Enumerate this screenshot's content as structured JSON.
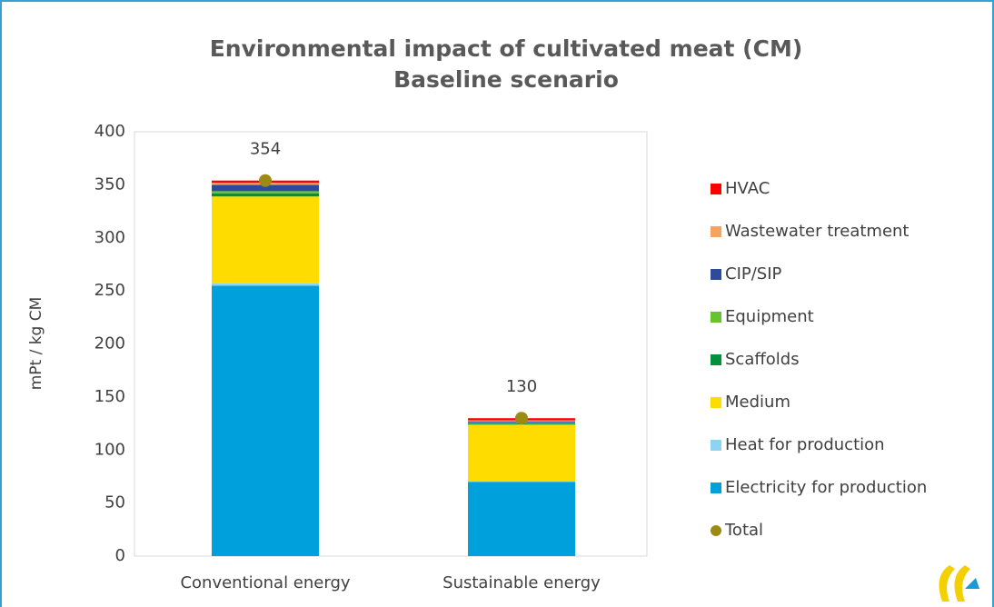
{
  "chart_data": {
    "type": "stacked_bar",
    "title": "Environmental impact of cultivated meat (CM)",
    "subtitle": "Baseline scenario",
    "y_axis_label": "mPt / kg CM",
    "categories": [
      "Conventional energy",
      "Sustainable energy"
    ],
    "series": [
      {
        "name": "Electricity for production",
        "color": "#00a0dc",
        "values": [
          255,
          70
        ]
      },
      {
        "name": "Heat for production",
        "color": "#8ed4f2",
        "values": [
          2,
          1
        ]
      },
      {
        "name": "Medium",
        "color": "#ffdc00",
        "values": [
          82,
          53
        ]
      },
      {
        "name": "Scaffolds",
        "color": "#00913c",
        "values": [
          3,
          1
        ]
      },
      {
        "name": "Equipment",
        "color": "#66c430",
        "values": [
          2,
          1
        ]
      },
      {
        "name": "CIP/SIP",
        "color": "#2e4a9a",
        "values": [
          6,
          1
        ]
      },
      {
        "name": "Wastewater treatment",
        "color": "#f4a460",
        "values": [
          2,
          1
        ]
      },
      {
        "name": "HVAC",
        "color": "#ff0000",
        "values": [
          2,
          2
        ]
      }
    ],
    "totals": {
      "name": "Total",
      "color": "#9c8a12",
      "values": [
        354,
        130
      ]
    },
    "ylim": [
      0,
      400
    ],
    "yticks": [
      0,
      50,
      100,
      150,
      200,
      250,
      300,
      350,
      400
    ],
    "grid": false,
    "legend": "right"
  }
}
